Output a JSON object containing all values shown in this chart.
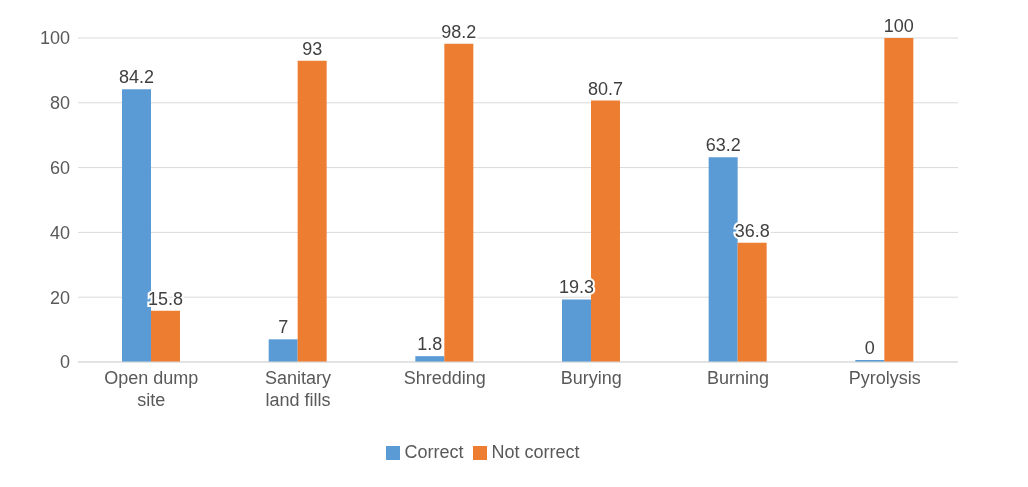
{
  "chart_data": {
    "type": "bar",
    "categories": [
      "Open dump site",
      "Sanitary land fills",
      "Shredding",
      "Burying",
      "Burning",
      "Pyrolysis"
    ],
    "series": [
      {
        "name": "Correct",
        "color": "#5b9bd5",
        "values": [
          84.2,
          7,
          1.8,
          19.3,
          63.2,
          0
        ]
      },
      {
        "name": "Not correct",
        "color": "#ed7d31",
        "values": [
          15.8,
          93,
          98.2,
          80.7,
          36.8,
          100
        ]
      }
    ],
    "ylim": [
      0,
      100
    ],
    "yticks": [
      0,
      20,
      40,
      60,
      80,
      100
    ],
    "grid": "y",
    "legend": "bottom",
    "data_labels": true
  }
}
